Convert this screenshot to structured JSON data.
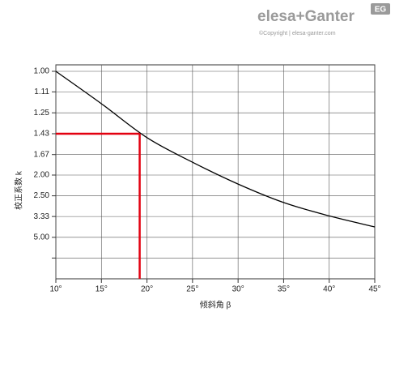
{
  "header": {
    "brand_left": "elesa",
    "brand_plus": "+",
    "brand_right": "Ganter",
    "badge": "EG",
    "copyright": "©Copyright | elesa-ganter.com"
  },
  "chart_data": {
    "type": "line",
    "x_label": "倾斜角 β",
    "y_label": "校正系数 k",
    "xlim": [
      10,
      45
    ],
    "xticks": [
      {
        "value": 10,
        "label": "10°"
      },
      {
        "value": 15,
        "label": "15°"
      },
      {
        "value": 20,
        "label": "20°"
      },
      {
        "value": 25,
        "label": "25°"
      },
      {
        "value": 30,
        "label": "30°"
      },
      {
        "value": 35,
        "label": "35°"
      },
      {
        "value": 40,
        "label": "40°"
      },
      {
        "value": 45,
        "label": "45°"
      }
    ],
    "yscale": "reciprocal",
    "yticks": [
      {
        "value": 1,
        "label": "1.00"
      },
      1.11,
      1.25,
      1.43,
      1.67,
      {
        "value": 2,
        "label": "2.00"
      },
      {
        "value": 2.5,
        "label": "2.50"
      },
      3.33,
      {
        "value": 5,
        "label": "5.00"
      }
    ],
    "minor_yticks": [
      10
    ],
    "grid": true,
    "x": [
      10,
      15,
      20,
      25,
      30,
      35,
      40,
      45
    ],
    "series": [
      {
        "color": "#000000",
        "values": [
          1.0,
          1.185,
          1.47,
          1.78,
          2.19,
          2.72,
          3.3,
          4.0
        ]
      }
    ],
    "marker": {
      "x": 19.2,
      "y": 1.43,
      "color": "#e3000f"
    }
  }
}
